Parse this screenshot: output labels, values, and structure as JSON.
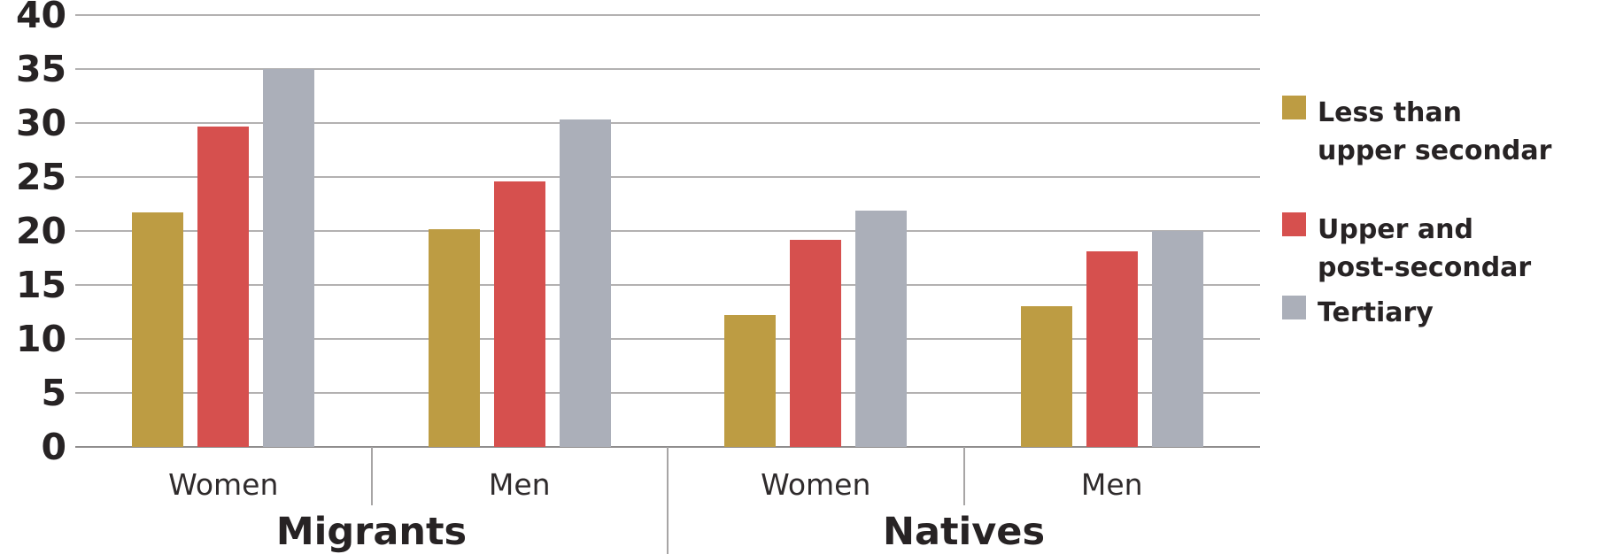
{
  "chart_data": {
    "type": "bar",
    "title": "",
    "categories": [
      "Migrants Women",
      "Migrants Men",
      "Natives Women",
      "Natives Men"
    ],
    "series": [
      {
        "name": "Less than upper secondar",
        "color": "#bd9c43",
        "values": [
          21.7,
          20.2,
          12.2,
          13.0
        ]
      },
      {
        "name": "Upper and post-secondar",
        "color": "#d6504e",
        "values": [
          29.7,
          24.6,
          19.2,
          18.1
        ]
      },
      {
        "name": "Tertiary",
        "color": "#abafb9",
        "values": [
          35.0,
          30.3,
          21.9,
          20.0
        ]
      }
    ],
    "xaxis": {
      "category_labels": [
        "Women",
        "Men",
        "Women",
        "Men"
      ],
      "group_labels": [
        "Migrants",
        "Natives"
      ]
    },
    "yaxis": {
      "ticks": [
        0,
        5,
        10,
        15,
        20,
        25,
        30,
        35,
        40
      ],
      "ylim": [
        0,
        40
      ],
      "grid": true
    },
    "legend": {
      "position": "right",
      "items": [
        {
          "lines": [
            "Less than",
            "upper secondar"
          ],
          "color": "#bd9c43"
        },
        {
          "lines": [
            "Upper and",
            "post-secondar"
          ],
          "color": "#d6504e"
        },
        {
          "lines": [
            "Tertiary"
          ],
          "color": "#abafb9"
        }
      ]
    }
  }
}
